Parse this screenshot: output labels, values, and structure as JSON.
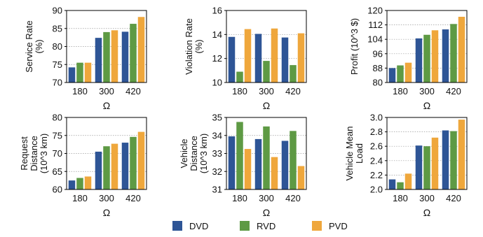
{
  "colors": {
    "DVD": "#2e5596",
    "RVD": "#5e9a44",
    "PVD": "#efa73c"
  },
  "legend": {
    "position": "bottom-center",
    "items": [
      {
        "label": "DVD",
        "color": "#2e5596"
      },
      {
        "label": "RVD",
        "color": "#5e9a44"
      },
      {
        "label": "PVD",
        "color": "#efa73c"
      }
    ]
  },
  "chart_data": [
    {
      "type": "bar",
      "ylabel_lines": [
        "Service Rate",
        "(%)"
      ],
      "xlabel": "Ω",
      "categories": [
        "180",
        "300",
        "420"
      ],
      "ylim": [
        70,
        90
      ],
      "yticks": [
        70,
        75,
        80,
        85,
        90
      ],
      "grid": true,
      "series": [
        {
          "name": "DVD",
          "values": [
            74.2,
            82.4,
            84.1
          ]
        },
        {
          "name": "RVD",
          "values": [
            75.5,
            84.0,
            86.3
          ]
        },
        {
          "name": "PVD",
          "values": [
            75.5,
            84.5,
            88.2
          ]
        }
      ]
    },
    {
      "type": "bar",
      "ylabel_lines": [
        "Violation Rate",
        "(%)"
      ],
      "xlabel": "Ω",
      "categories": [
        "180",
        "300",
        "420"
      ],
      "ylim": [
        10,
        16
      ],
      "yticks": [
        10,
        12,
        14,
        16
      ],
      "grid": true,
      "series": [
        {
          "name": "DVD",
          "values": [
            13.8,
            14.05,
            13.75
          ]
        },
        {
          "name": "RVD",
          "values": [
            10.9,
            11.8,
            11.45
          ]
        },
        {
          "name": "PVD",
          "values": [
            14.45,
            14.5,
            14.1
          ]
        }
      ]
    },
    {
      "type": "bar",
      "ylabel_lines": [
        "Profit (10^3 $)"
      ],
      "xlabel": "Ω",
      "categories": [
        "180",
        "300",
        "420"
      ],
      "ylim": [
        80,
        120
      ],
      "yticks": [
        80,
        88,
        96,
        104,
        112,
        120
      ],
      "grid": true,
      "series": [
        {
          "name": "DVD",
          "values": [
            88.0,
            104.5,
            109.5
          ]
        },
        {
          "name": "RVD",
          "values": [
            89.5,
            106.5,
            112.5
          ]
        },
        {
          "name": "PVD",
          "values": [
            91.0,
            109.0,
            116.5
          ]
        }
      ]
    },
    {
      "type": "bar",
      "ylabel_lines": [
        "Request",
        "Distance",
        "(10^3 km)"
      ],
      "xlabel": "Ω",
      "categories": [
        "180",
        "300",
        "420"
      ],
      "ylim": [
        60,
        80
      ],
      "yticks": [
        60,
        65,
        70,
        75,
        80
      ],
      "grid": true,
      "series": [
        {
          "name": "DVD",
          "values": [
            62.5,
            70.5,
            73.0
          ]
        },
        {
          "name": "RVD",
          "values": [
            63.2,
            72.0,
            74.6
          ]
        },
        {
          "name": "PVD",
          "values": [
            63.6,
            72.7,
            76.0
          ]
        }
      ]
    },
    {
      "type": "bar",
      "ylabel_lines": [
        "Vehicle",
        "Distance",
        "(10^3 km)"
      ],
      "xlabel": "Ω",
      "categories": [
        "180",
        "300",
        "420"
      ],
      "ylim": [
        31,
        35
      ],
      "yticks": [
        31,
        32,
        33,
        34,
        35
      ],
      "grid": true,
      "series": [
        {
          "name": "DVD",
          "values": [
            33.95,
            33.8,
            33.7
          ]
        },
        {
          "name": "RVD",
          "values": [
            34.75,
            34.5,
            34.25
          ]
        },
        {
          "name": "PVD",
          "values": [
            33.25,
            32.8,
            32.3
          ]
        }
      ]
    },
    {
      "type": "bar",
      "ylabel_lines": [
        "Vehicle Mean",
        "Load"
      ],
      "xlabel": "Ω",
      "categories": [
        "180",
        "300",
        "420"
      ],
      "ylim": [
        2.0,
        3.0
      ],
      "yticks": [
        "2.0",
        "2.2",
        "2.4",
        "2.6",
        "2.8",
        "3.0"
      ],
      "grid": true,
      "series": [
        {
          "name": "DVD",
          "values": [
            2.14,
            2.61,
            2.82
          ]
        },
        {
          "name": "RVD",
          "values": [
            2.1,
            2.6,
            2.81
          ]
        },
        {
          "name": "PVD",
          "values": [
            2.22,
            2.72,
            2.97
          ]
        }
      ]
    }
  ]
}
